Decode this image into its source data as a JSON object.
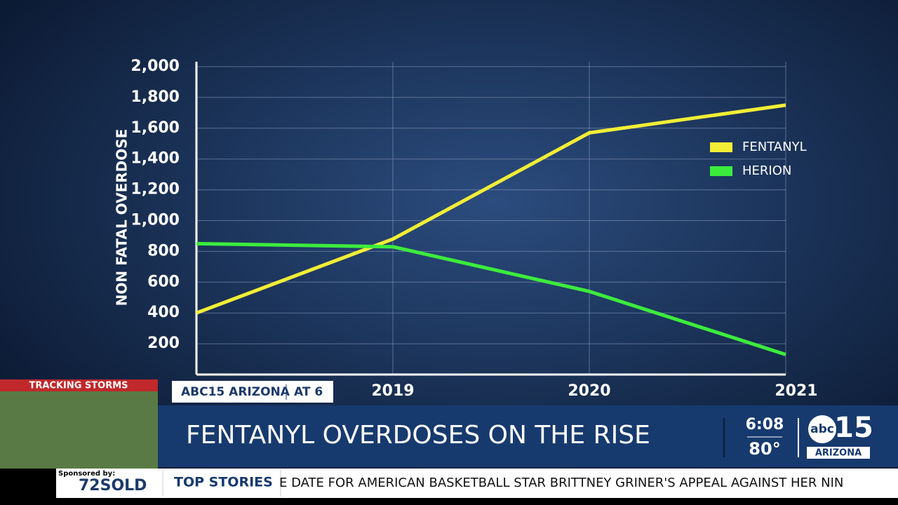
{
  "chart_data": {
    "type": "line",
    "y_label": "NON FATAL OVERDOSE",
    "categories": [
      null,
      "2019",
      "2020",
      "2021"
    ],
    "series": [
      {
        "name": "FENTANYL",
        "color": "#f2ee35",
        "values": [
          400,
          880,
          1570,
          1750
        ]
      },
      {
        "name": "HERION",
        "color": "#3cec3c",
        "values": [
          850,
          830,
          540,
          130
        ]
      }
    ],
    "ylim": [
      0,
      2000
    ],
    "yticks": [
      200,
      400,
      600,
      800,
      {
        "value": 1000,
        "label": "1,000"
      },
      {
        "value": 1200,
        "label": "1,200"
      },
      {
        "value": 1400,
        "label": "1,400"
      },
      {
        "value": 1600,
        "label": "1,600"
      },
      {
        "value": 1800,
        "label": "1,800"
      },
      {
        "value": 2000,
        "label": "2,000"
      }
    ],
    "grid": true
  },
  "overlay": {
    "storm_title": "TRACKING STORMS",
    "station": "ABC15 ARIZONA",
    "show": "AT 6",
    "headline": "FENTANYL OVERDOSES ON THE RISE",
    "time": "6:08",
    "temp": "80°",
    "logo_abc": "abc",
    "logo_num": "15",
    "logo_region": "ARIZONA",
    "sponsor": "Sponsored by:",
    "sponsor_name": "72SOLD",
    "section": "TOP STORIES",
    "ticker": "E DATE FOR AMERICAN BASKETBALL STAR BRITTNEY GRINER'S APPEAL AGAINST HER NIN"
  }
}
